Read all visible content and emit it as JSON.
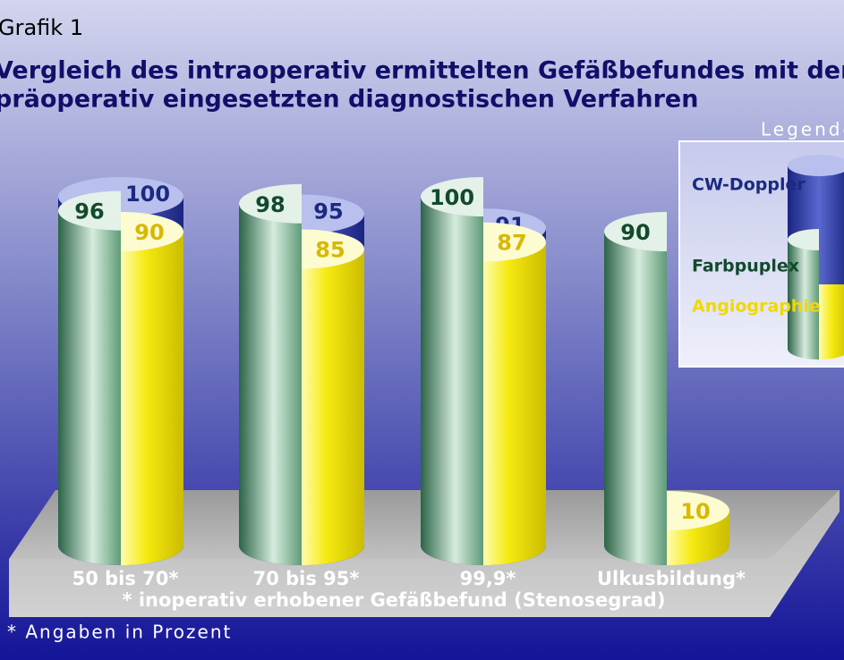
{
  "chart_data": {
    "type": "cylinder",
    "label": "Grafik 1",
    "title": [
      "Vergleich des intraoperativ ermittelten Gefäßbefundes mit dem",
      "präoperativ eingesetzten diagnostischen Verfahren"
    ],
    "categories": [
      "50 bis 70*",
      "70 bis 95*",
      "99,9*",
      "Ulkusbildung*"
    ],
    "series": [
      {
        "name": "CW-Doppler",
        "color": "#1f2f96",
        "values": [
          100,
          95,
          91,
          null
        ],
        "value_labels": [
          "100",
          "95",
          "91",
          "./."
        ]
      },
      {
        "name": "Farbpuplex",
        "color": "#3f8060",
        "values": [
          96,
          98,
          100,
          90
        ],
        "value_labels": [
          "*96",
          "98",
          "100",
          "90"
        ]
      },
      {
        "name": "Angiographie",
        "color": "#f0e400",
        "values": [
          90,
          85,
          87,
          10
        ]
      }
    ],
    "legend_title": "Legende",
    "x_note": "* inoperativ erhobener Gefäßbefund (Stenosegrad)",
    "footnote": "* Angaben in Prozent"
  }
}
